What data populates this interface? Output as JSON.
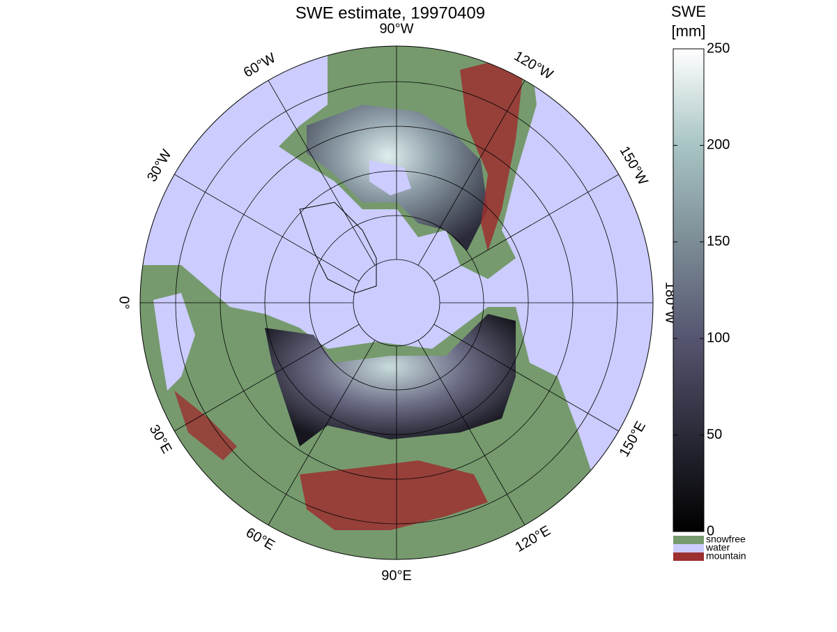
{
  "title": "SWE estimate, 19970409",
  "longitude_labels": [
    "90°W",
    "120°W",
    "150°W",
    "180°W",
    "150°E",
    "120°E",
    "90°E",
    "60°E",
    "30°E",
    "0°",
    "30°W",
    "60°W"
  ],
  "colorbar": {
    "label": [
      "SWE",
      "[mm]"
    ],
    "lim": [
      0,
      250
    ],
    "ticks": [
      0,
      50,
      100,
      150,
      200,
      250
    ]
  },
  "legend": [
    {
      "name": "snowfree",
      "color": "#769a6e"
    },
    {
      "name": "water",
      "color": "#ccccff"
    },
    {
      "name": "mountain",
      "color": "#9c3030"
    }
  ]
}
